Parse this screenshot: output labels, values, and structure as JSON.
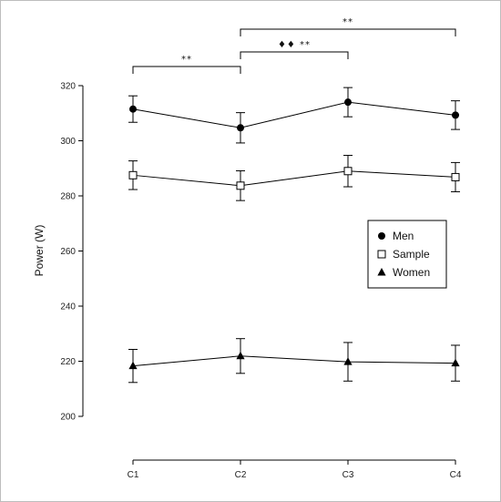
{
  "chart_data": {
    "type": "line",
    "ylabel": "Power (W)",
    "xlabel": "",
    "categories": [
      "C1",
      "C2",
      "C3",
      "C4"
    ],
    "ylim": [
      200,
      320
    ],
    "yticks": [
      200,
      220,
      240,
      260,
      280,
      300,
      320
    ],
    "grid": false,
    "legend_position": "right",
    "series": [
      {
        "name": "Men",
        "marker": "circle-filled",
        "values": [
          311.5,
          304.7,
          314.0,
          309.3
        ],
        "errors": [
          4.8,
          5.5,
          5.3,
          5.2
        ]
      },
      {
        "name": "Sample",
        "marker": "square-open",
        "values": [
          287.5,
          283.7,
          289.0,
          286.8
        ],
        "errors": [
          5.2,
          5.4,
          5.7,
          5.3
        ]
      },
      {
        "name": "Women",
        "marker": "triangle-filled",
        "values": [
          218.3,
          221.9,
          219.8,
          219.3
        ],
        "errors": [
          6.0,
          6.3,
          7.0,
          6.5
        ]
      }
    ],
    "significance": [
      {
        "from": "C1",
        "to": "C2",
        "label": "**"
      },
      {
        "from": "C2",
        "to": "C3",
        "label": "♦♦ **"
      },
      {
        "from": "C2",
        "to": "C4",
        "label": "**"
      }
    ]
  }
}
